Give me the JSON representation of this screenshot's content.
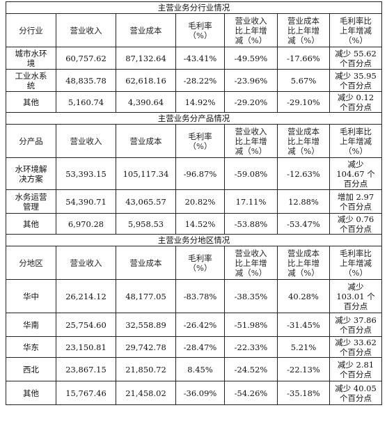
{
  "sections": [
    {
      "title": "主营业务分行业情况",
      "headers": [
        "分行业",
        "营业收入",
        "营业成本",
        "毛利率\n（%）",
        "营业收入\n比上年增\n减（%）",
        "营业成本\n比上年增\n减（%）",
        "毛利率比\n上年增减\n（%）"
      ],
      "rows": [
        [
          "城市水环\n境",
          "60,757.62",
          "87,132.64",
          "-43.41%",
          "-49.59%",
          "-17.66%",
          "减少 55.62\n个百分点"
        ],
        [
          "工业水系\n统",
          "48,835.78",
          "62,618.16",
          "-28.22%",
          "-23.96%",
          "5.67%",
          "减少 35.95\n个百分点"
        ],
        [
          "其他",
          "5,160.74",
          "4,390.64",
          "14.92%",
          "-29.20%",
          "-29.10%",
          "减少 0.12\n个百分点"
        ]
      ]
    },
    {
      "title": "主营业务分产品情况",
      "headers": [
        "分产品",
        "营业收入",
        "营业成本",
        "毛利率\n（%）",
        "营业收入\n比上年增\n减（%）",
        "营业成本\n比上年增\n减（%）",
        "毛利率比\n上年增减\n（%）"
      ],
      "rows": [
        [
          "水环境解\n决方案",
          "53,393.15",
          "105,117.34",
          "-96.87%",
          "-59.08%",
          "-12.63%",
          "减少\n104.67 个\n百分点"
        ],
        [
          "水务运营\n管理",
          "54,390.71",
          "43,065.57",
          "20.82%",
          "17.11%",
          "12.88%",
          "增加 2.97\n个百分点"
        ],
        [
          "其他",
          "6,970.28",
          "5,958.53",
          "14.52%",
          "-53.88%",
          "-53.47%",
          "减少 0.76\n个百分点"
        ]
      ]
    },
    {
      "title": "主营业务分地区情况",
      "headers": [
        "分地区",
        "营业收入",
        "营业成本",
        "毛利率\n（%）",
        "营业收入\n比上年增\n减（%）",
        "营业成本\n比上年增\n减（%）",
        "毛利率比\n上年增减\n（%）"
      ],
      "rows": [
        [
          "华中",
          "26,214.12",
          "48,177.05",
          "-83.78%",
          "-38.35%",
          "40.28%",
          "减少\n103.01 个\n百分点"
        ],
        [
          "华南",
          "25,754.60",
          "32,558.89",
          "-26.42%",
          "-51.98%",
          "-31.45%",
          "减少 37.86\n个百分点"
        ],
        [
          "华东",
          "23,150.81",
          "29,742.78",
          "-28.47%",
          "-22.33%",
          "5.21%",
          "减少 33.62\n个百分点"
        ],
        [
          "西北",
          "23,867.15",
          "21,850.72",
          "8.45%",
          "-24.52%",
          "-22.13%",
          "减少 2.81\n个百分点"
        ],
        [
          "其他",
          "15,767.46",
          "21,458.02",
          "-36.09%",
          "-54.26%",
          "-35.18%",
          "减少 40.05\n个百分点"
        ]
      ]
    }
  ]
}
